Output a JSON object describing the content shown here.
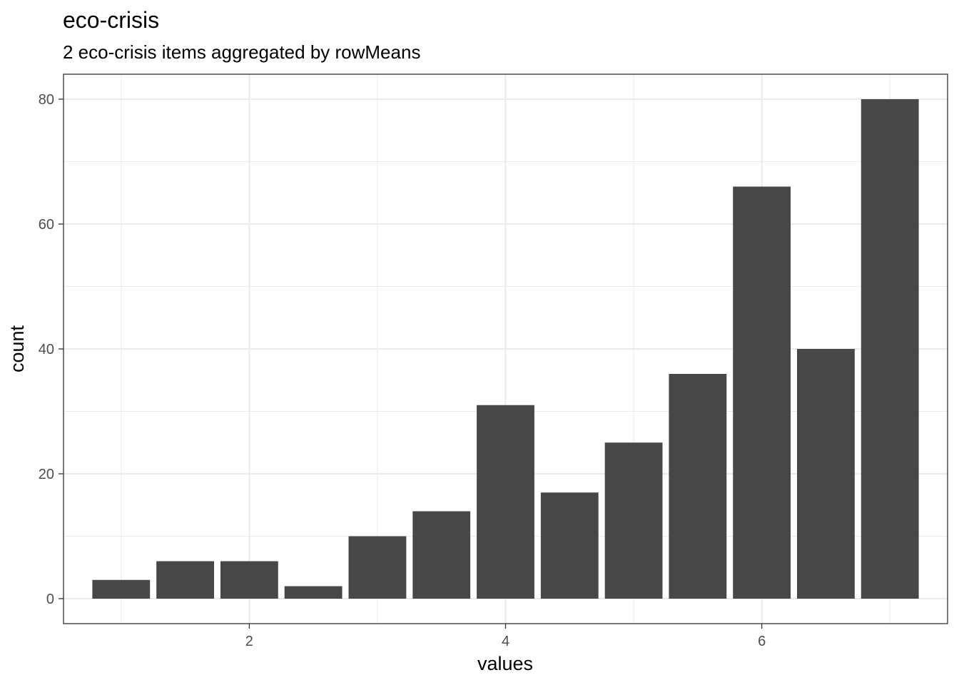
{
  "chart_data": {
    "type": "bar",
    "title": "eco-crisis",
    "subtitle": "2 eco-crisis items aggregated by rowMeans",
    "xlabel": "values",
    "ylabel": "count",
    "x": [
      1,
      1.5,
      2,
      2.5,
      3,
      3.5,
      4,
      4.5,
      5,
      5.5,
      6,
      6.5,
      7
    ],
    "values": [
      3,
      6,
      6,
      2,
      10,
      14,
      31,
      17,
      25,
      36,
      66,
      40,
      80
    ],
    "xlim": [
      0.55,
      7.45
    ],
    "ylim": [
      -4,
      84
    ],
    "xticks": [
      2,
      4,
      6
    ],
    "yticks": [
      0,
      20,
      40,
      60,
      80
    ],
    "grid": true,
    "bar_color": "#474747",
    "grid_color": "#ebebeb"
  }
}
